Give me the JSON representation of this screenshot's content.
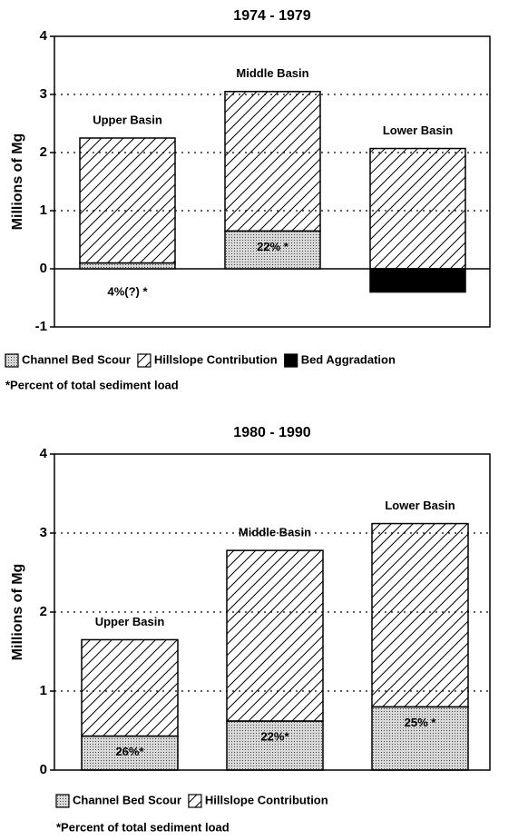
{
  "chart_data": [
    {
      "type": "bar",
      "stacked": true,
      "title": "1974 - 1979",
      "y_label": "Millions of Mg",
      "categories": [
        "Upper Basin",
        "Middle Basin",
        "Lower Basin"
      ],
      "series": [
        {
          "name": "Channel Bed Scour",
          "color": "#b0b0b0",
          "values": [
            0.1,
            0.65,
            null
          ]
        },
        {
          "name": "Hillslope Contribution",
          "color": "#ffffff",
          "values": [
            2.15,
            2.4,
            2.07
          ]
        },
        {
          "name": "Bed Aggradation",
          "color": "#000000",
          "values": [
            null,
            null,
            -0.4
          ]
        }
      ],
      "percent_labels": [
        "4%(?) *",
        "22% *",
        null
      ],
      "footnote": "*Percent of total sediment load",
      "ylim": [
        -1,
        4
      ],
      "yticks": [
        -1,
        0,
        1,
        2,
        3,
        4
      ],
      "grid": true
    },
    {
      "type": "bar",
      "stacked": true,
      "title": "1980 - 1990",
      "y_label": "Millions of Mg",
      "categories": [
        "Upper Basin",
        "Middle Basin",
        "Lower Basin"
      ],
      "series": [
        {
          "name": "Channel Bed Scour",
          "color": "#b0b0b0",
          "values": [
            0.43,
            0.62,
            0.8
          ]
        },
        {
          "name": "Hillslope Contribution",
          "color": "#ffffff",
          "values": [
            1.22,
            2.16,
            2.32
          ]
        }
      ],
      "percent_labels": [
        "26%*",
        "22%*",
        "25% *"
      ],
      "footnote": "*Percent of total sediment load",
      "ylim": [
        0,
        4
      ],
      "yticks": [
        0,
        1,
        2,
        3,
        4
      ],
      "grid": true
    }
  ]
}
